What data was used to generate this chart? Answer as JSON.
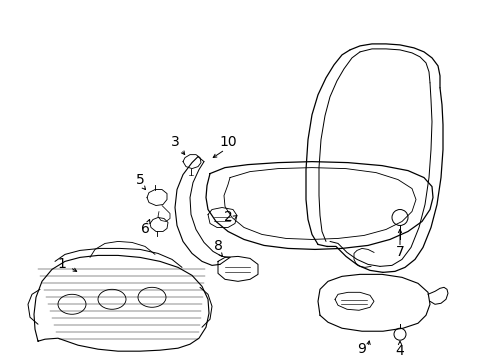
{
  "bg_color": "#ffffff",
  "fig_width": 4.89,
  "fig_height": 3.6,
  "dpi": 100,
  "lc": "#000000",
  "lw": 0.9
}
